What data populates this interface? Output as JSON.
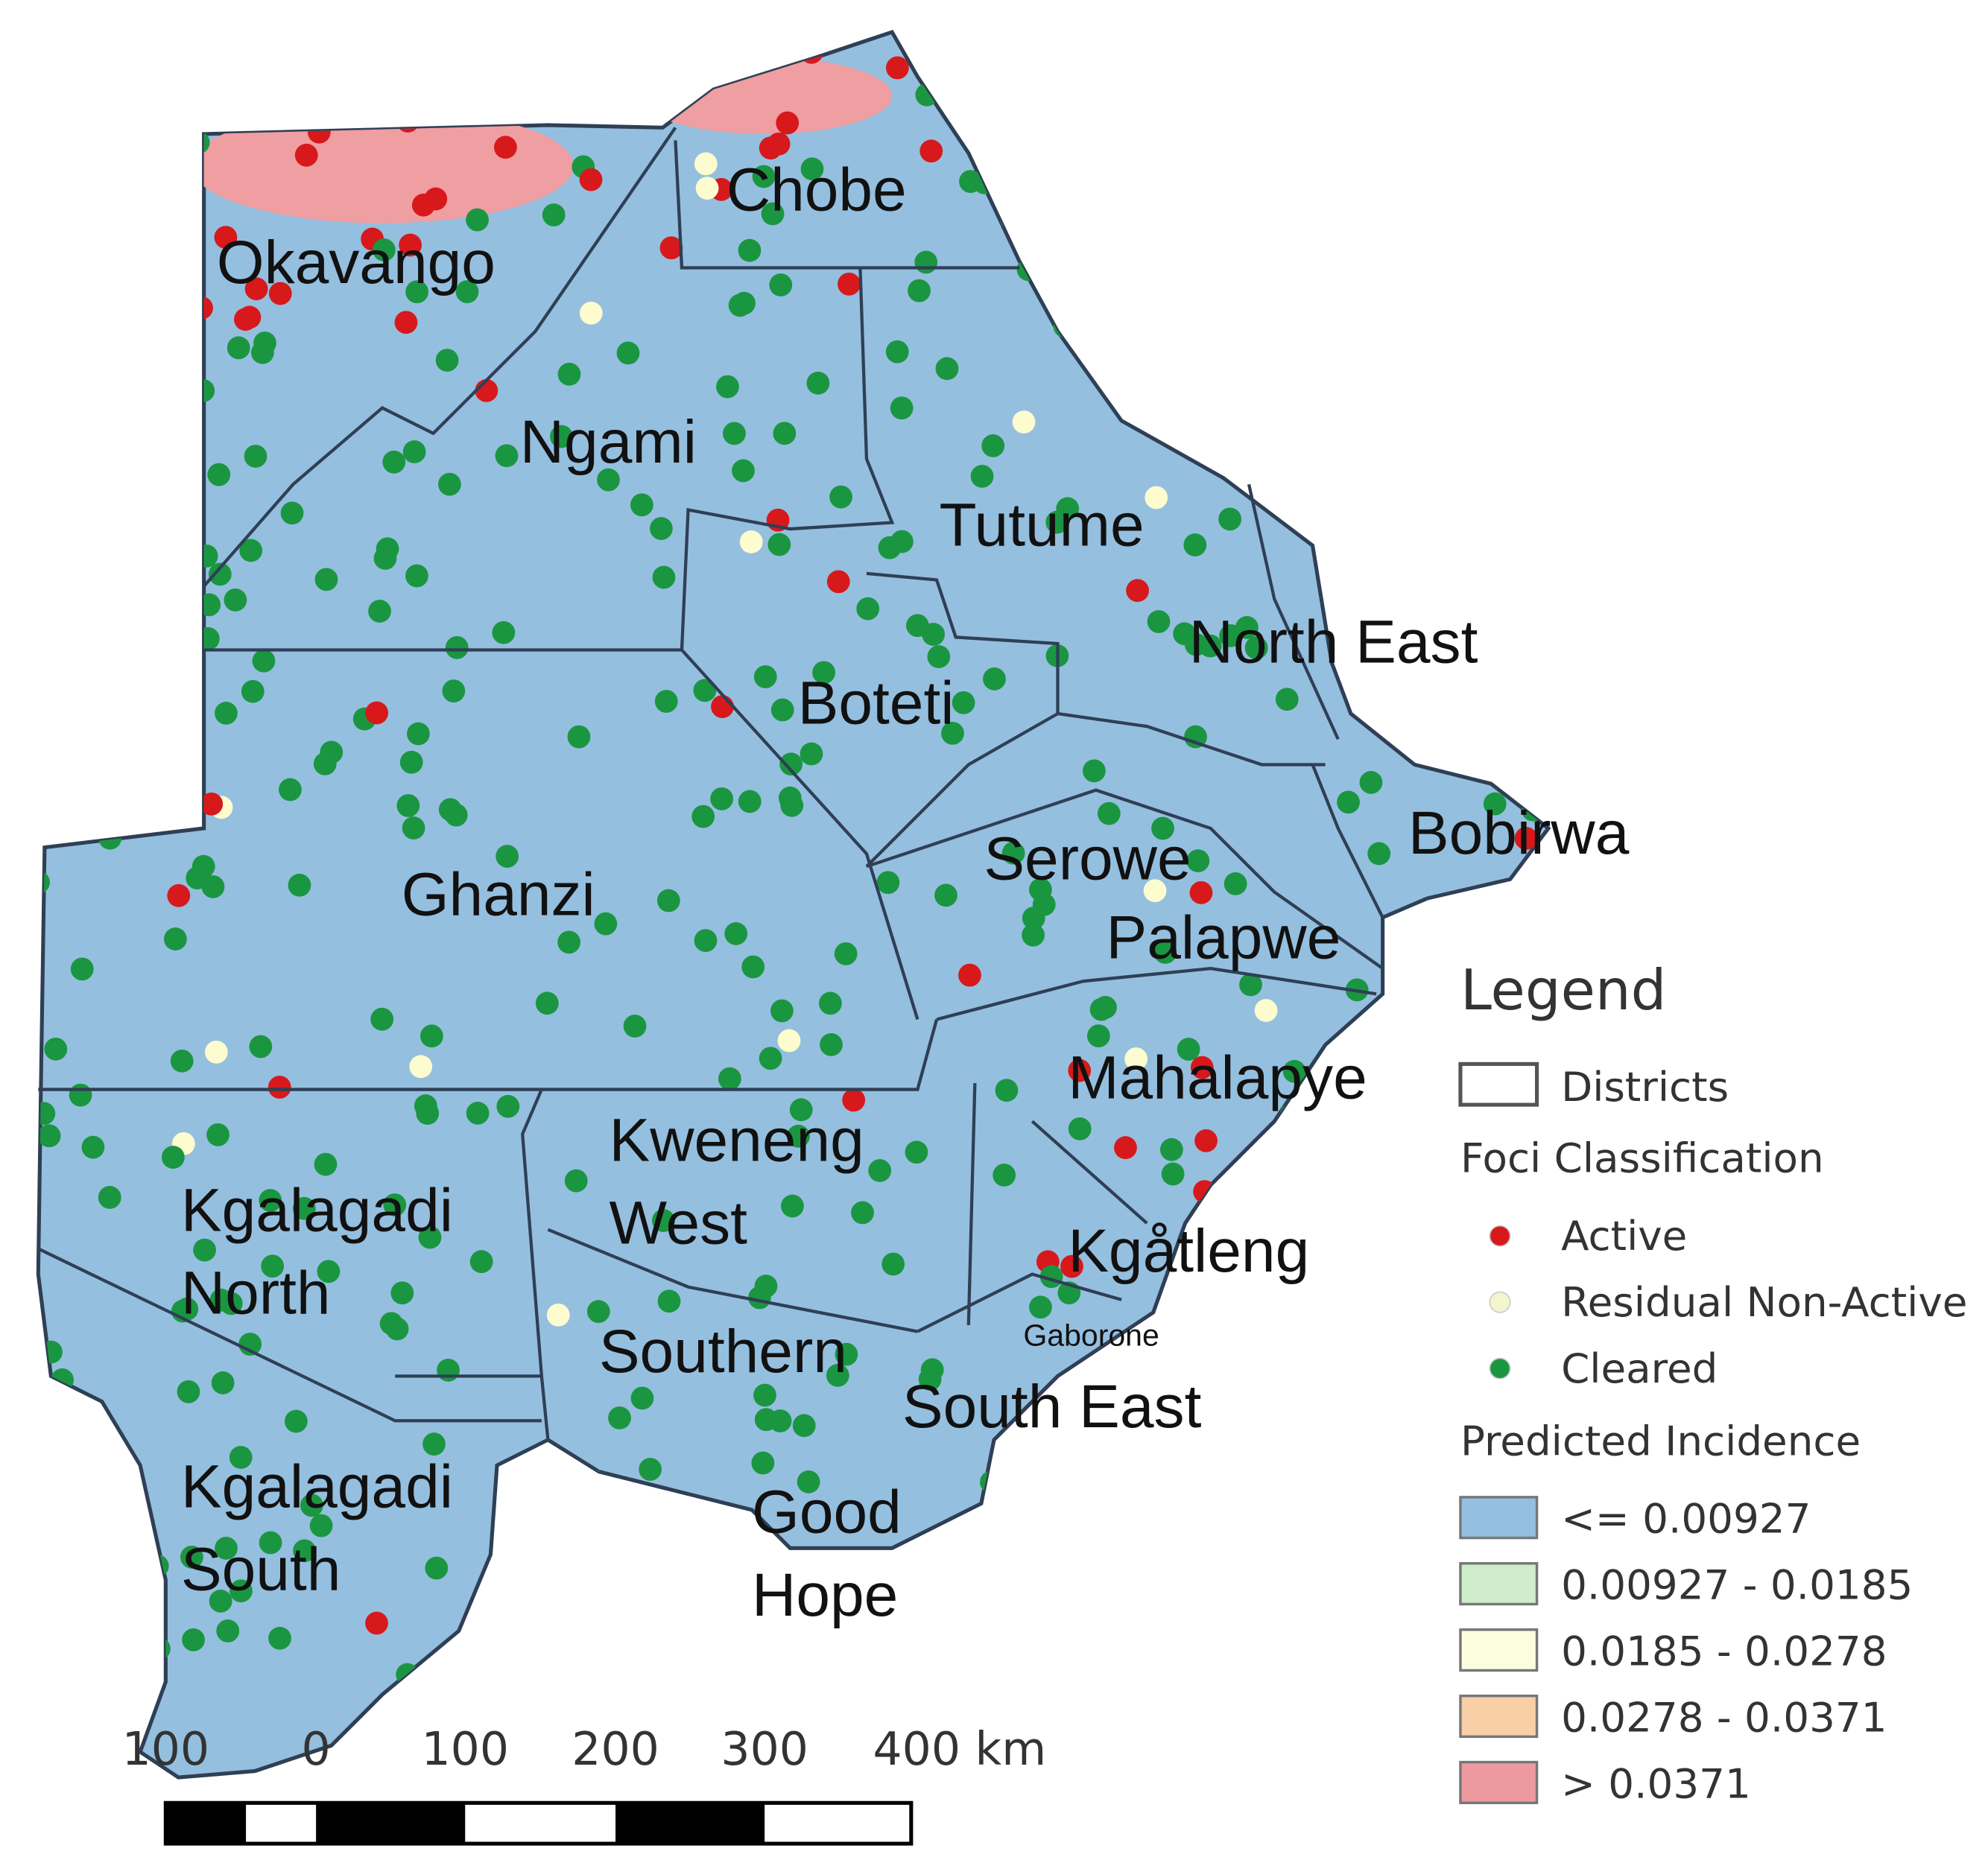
{
  "map": {
    "districts": [
      {
        "name": "Okavango"
      },
      {
        "name": "Chobe"
      },
      {
        "name": "Ngami"
      },
      {
        "name": "Tutume"
      },
      {
        "name": "North East"
      },
      {
        "name": "Boteti"
      },
      {
        "name": "Bobirwa"
      },
      {
        "name": "Ghanzi"
      },
      {
        "name": "Serowe"
      },
      {
        "name": "Palapwe"
      },
      {
        "name": "Mahalapye"
      },
      {
        "name": "Kweneng"
      },
      {
        "name": "West"
      },
      {
        "name": "Kgalagadi"
      },
      {
        "name": "North"
      },
      {
        "name": "Kgåtleng"
      },
      {
        "name": "Southern"
      },
      {
        "name": "South East"
      },
      {
        "name": "Kgalagadi"
      },
      {
        "name": "South"
      },
      {
        "name": "Good"
      },
      {
        "name": "Hope"
      }
    ],
    "city": "Gaborone",
    "colors": {
      "land": "#95bfdf",
      "border": "#2f3f55",
      "high_incidence": "#ef9ea2",
      "active": "#d7191c",
      "residual": "#fdfccf",
      "cleared": "#1a9641"
    }
  },
  "legend": {
    "title": "Legend",
    "districts_label": "Districts",
    "foci_title": "Foci Classification",
    "foci": [
      {
        "label": "Active",
        "color": "#d7191c"
      },
      {
        "label": "Residual Non-Active",
        "color": "#f3f5cf"
      },
      {
        "label": "Cleared",
        "color": "#1a9641"
      }
    ],
    "incidence_title": "Predicted Incidence",
    "incidence": [
      {
        "label": "<= 0.00927",
        "color": "#94bfe0"
      },
      {
        "label": "0.00927 - 0.0185",
        "color": "#cfeccb"
      },
      {
        "label": "0.0185 - 0.0278",
        "color": "#fdfde0"
      },
      {
        "label": "0.0278 - 0.0371",
        "color": "#f9cfa8"
      },
      {
        "label": "> 0.0371",
        "color": "#ec9aa0"
      }
    ]
  },
  "scale_bar": {
    "ticks": [
      "100",
      "0",
      "100",
      "200",
      "300",
      "400 km"
    ]
  }
}
